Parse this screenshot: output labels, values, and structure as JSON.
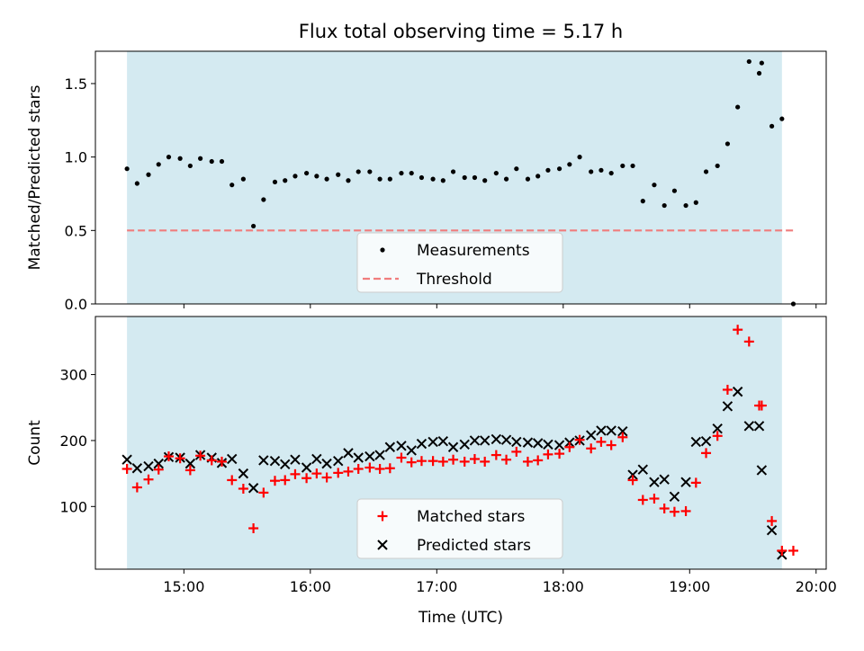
{
  "figure": {
    "title": "Flux total observing time = 5.17 h"
  },
  "colors": {
    "shade": "#d4eaf1",
    "threshold": "#f07d7d",
    "measurement": "#000000",
    "matched": "#ff0000",
    "predicted": "#000000"
  },
  "chart_data": [
    {
      "type": "scatter",
      "panel": "top",
      "title": "Flux total observing time = 5.17 h",
      "xlabel": "",
      "ylabel": "Matched/Predicted stars",
      "xlim": [
        14.3,
        20.08
      ],
      "ylim": [
        0,
        1.72
      ],
      "y_ticks": [
        0,
        0.5,
        1,
        1.5
      ],
      "y_tick_labels": [
        "0.0",
        "0.5",
        "1.0",
        "1.5"
      ],
      "x_ticks": [
        15,
        16,
        17,
        18,
        19,
        20
      ],
      "shaded_range": [
        14.55,
        19.73
      ],
      "threshold": {
        "y": 0.5,
        "x_range": [
          14.55,
          19.83
        ]
      },
      "legend": {
        "position": "lower-center",
        "entries": [
          {
            "label": "Measurements",
            "marker": "dot"
          },
          {
            "label": "Threshold",
            "marker": "dashed-line"
          }
        ]
      },
      "series": [
        {
          "name": "Measurements",
          "marker": "dot",
          "x": [
            14.55,
            14.63,
            14.72,
            14.8,
            14.88,
            14.97,
            15.05,
            15.13,
            15.22,
            15.3,
            15.38,
            15.47,
            15.55,
            15.63,
            15.72,
            15.8,
            15.88,
            15.97,
            16.05,
            16.13,
            16.22,
            16.3,
            16.38,
            16.47,
            16.55,
            16.63,
            16.72,
            16.8,
            16.88,
            16.97,
            17.05,
            17.13,
            17.22,
            17.3,
            17.38,
            17.47,
            17.55,
            17.63,
            17.72,
            17.8,
            17.88,
            17.97,
            18.05,
            18.13,
            18.22,
            18.3,
            18.38,
            18.47,
            18.55,
            18.63,
            18.72,
            18.8,
            18.88,
            18.97,
            19.05,
            19.13,
            19.22,
            19.3,
            19.38,
            19.47,
            19.55,
            19.57,
            19.65,
            19.73,
            19.82
          ],
          "y": [
            0.92,
            0.82,
            0.88,
            0.95,
            1.0,
            0.99,
            0.94,
            0.99,
            0.97,
            0.97,
            0.81,
            0.85,
            0.53,
            0.71,
            0.83,
            0.84,
            0.87,
            0.89,
            0.87,
            0.85,
            0.88,
            0.84,
            0.9,
            0.9,
            0.85,
            0.85,
            0.89,
            0.89,
            0.86,
            0.85,
            0.84,
            0.9,
            0.86,
            0.86,
            0.84,
            0.89,
            0.85,
            0.92,
            0.85,
            0.87,
            0.91,
            0.92,
            0.95,
            1.0,
            0.9,
            0.91,
            0.89,
            0.94,
            0.94,
            0.7,
            0.81,
            0.67,
            0.77,
            0.67,
            0.69,
            0.9,
            0.94,
            1.09,
            1.34,
            1.65,
            1.57,
            1.64,
            1.21,
            1.26,
            0.0
          ]
        }
      ]
    },
    {
      "type": "scatter",
      "panel": "bottom",
      "xlabel": "Time (UTC)",
      "ylabel": "Count",
      "xlim": [
        14.3,
        20.08
      ],
      "ylim": [
        5,
        388
      ],
      "y_ticks": [
        100,
        200,
        300
      ],
      "x_ticks": [
        15,
        16,
        17,
        18,
        19,
        20
      ],
      "x_tick_labels": [
        "15:00",
        "16:00",
        "17:00",
        "18:00",
        "19:00",
        "20:00"
      ],
      "shaded_range": [
        14.55,
        19.73
      ],
      "legend": {
        "position": "lower-center",
        "entries": [
          {
            "label": "Matched stars",
            "marker": "plus"
          },
          {
            "label": "Predicted stars",
            "marker": "x"
          }
        ]
      },
      "series": [
        {
          "name": "Matched stars",
          "marker": "plus",
          "x": [
            14.55,
            14.63,
            14.72,
            14.8,
            14.88,
            14.97,
            15.05,
            15.13,
            15.22,
            15.3,
            15.38,
            15.47,
            15.55,
            15.63,
            15.72,
            15.8,
            15.88,
            15.97,
            16.05,
            16.13,
            16.22,
            16.3,
            16.38,
            16.47,
            16.55,
            16.63,
            16.72,
            16.8,
            16.88,
            16.97,
            17.05,
            17.13,
            17.22,
            17.3,
            17.38,
            17.47,
            17.55,
            17.63,
            17.72,
            17.8,
            17.88,
            17.97,
            18.05,
            18.13,
            18.22,
            18.3,
            18.38,
            18.47,
            18.55,
            18.63,
            18.72,
            18.8,
            18.88,
            18.97,
            19.05,
            19.13,
            19.22,
            19.3,
            19.38,
            19.47,
            19.55,
            19.57,
            19.65,
            19.73,
            19.82
          ],
          "y": [
            157,
            129,
            141,
            156,
            176,
            173,
            155,
            177,
            170,
            168,
            140,
            127,
            67,
            121,
            139,
            140,
            149,
            143,
            150,
            144,
            151,
            153,
            157,
            159,
            157,
            158,
            174,
            167,
            169,
            169,
            168,
            171,
            168,
            172,
            168,
            178,
            171,
            183,
            168,
            170,
            179,
            180,
            190,
            201,
            188,
            198,
            193,
            205,
            140,
            110,
            112,
            97,
            92,
            93,
            136,
            181,
            207,
            277,
            368,
            350,
            253,
            253,
            78,
            33,
            33
          ]
        },
        {
          "name": "Predicted stars",
          "marker": "x",
          "x": [
            14.55,
            14.63,
            14.72,
            14.8,
            14.88,
            14.97,
            15.05,
            15.13,
            15.22,
            15.3,
            15.38,
            15.47,
            15.55,
            15.63,
            15.72,
            15.8,
            15.88,
            15.97,
            16.05,
            16.13,
            16.22,
            16.3,
            16.38,
            16.47,
            16.55,
            16.63,
            16.72,
            16.8,
            16.88,
            16.97,
            17.05,
            17.13,
            17.22,
            17.3,
            17.38,
            17.47,
            17.55,
            17.63,
            17.72,
            17.8,
            17.88,
            17.97,
            18.05,
            18.13,
            18.22,
            18.3,
            18.38,
            18.47,
            18.55,
            18.63,
            18.72,
            18.8,
            18.88,
            18.97,
            19.05,
            19.13,
            19.22,
            19.3,
            19.38,
            19.47,
            19.55,
            19.57,
            19.65,
            19.73
          ],
          "y": [
            171,
            158,
            161,
            165,
            175,
            174,
            165,
            178,
            174,
            166,
            172,
            150,
            128,
            170,
            169,
            164,
            171,
            159,
            172,
            165,
            169,
            181,
            174,
            176,
            178,
            190,
            192,
            185,
            195,
            198,
            199,
            190,
            194,
            200,
            200,
            202,
            201,
            198,
            197,
            196,
            194,
            193,
            197,
            200,
            208,
            215,
            215,
            214,
            148,
            156,
            137,
            141,
            115,
            137,
            198,
            199,
            218,
            252,
            274,
            222,
            222,
            155,
            64,
            27
          ]
        }
      ]
    }
  ]
}
